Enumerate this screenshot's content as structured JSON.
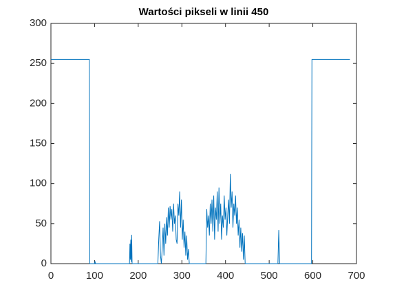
{
  "chart_data": {
    "type": "line",
    "title": "Wartości pikseli w linii 450",
    "x": [
      0,
      88,
      89,
      100,
      101,
      102,
      180,
      181,
      182,
      183,
      184,
      185,
      186,
      245,
      247,
      249,
      251,
      253,
      255,
      257,
      259,
      261,
      263,
      265,
      267,
      269,
      271,
      273,
      275,
      277,
      279,
      281,
      283,
      285,
      287,
      289,
      291,
      293,
      295,
      297,
      299,
      301,
      303,
      305,
      307,
      309,
      311,
      313,
      315,
      317,
      355,
      357,
      359,
      361,
      363,
      365,
      367,
      369,
      371,
      373,
      375,
      377,
      379,
      381,
      383,
      385,
      387,
      389,
      391,
      393,
      395,
      397,
      399,
      401,
      403,
      405,
      407,
      409,
      411,
      413,
      415,
      417,
      419,
      421,
      423,
      425,
      427,
      429,
      431,
      433,
      435,
      437,
      439,
      441,
      443,
      445,
      520,
      522,
      524,
      597,
      598,
      685
    ],
    "series": [
      {
        "color": "#0072bd",
        "values": [
          255,
          255,
          0,
          0,
          3,
          0,
          0,
          25,
          5,
          30,
          2,
          36,
          0,
          0,
          30,
          53,
          10,
          0,
          20,
          45,
          10,
          50,
          25,
          58,
          35,
          70,
          45,
          72,
          55,
          68,
          40,
          75,
          50,
          60,
          30,
          25,
          75,
          60,
          90,
          45,
          80,
          30,
          55,
          20,
          40,
          10,
          35,
          5,
          18,
          0,
          0,
          68,
          45,
          60,
          35,
          75,
          50,
          80,
          40,
          85,
          30,
          70,
          55,
          90,
          40,
          95,
          50,
          75,
          30,
          60,
          45,
          85,
          55,
          70,
          35,
          60,
          80,
          50,
          112,
          70,
          90,
          45,
          75,
          60,
          85,
          50,
          70,
          35,
          55,
          20,
          45,
          15,
          38,
          5,
          35,
          0,
          0,
          42,
          0,
          0,
          255,
          255
        ]
      }
    ],
    "xlim": [
      0,
      700
    ],
    "ylim": [
      0,
      300
    ],
    "xticks": [
      0,
      100,
      200,
      300,
      400,
      500,
      600,
      700
    ],
    "yticks": [
      0,
      50,
      100,
      150,
      200,
      250,
      300
    ]
  }
}
